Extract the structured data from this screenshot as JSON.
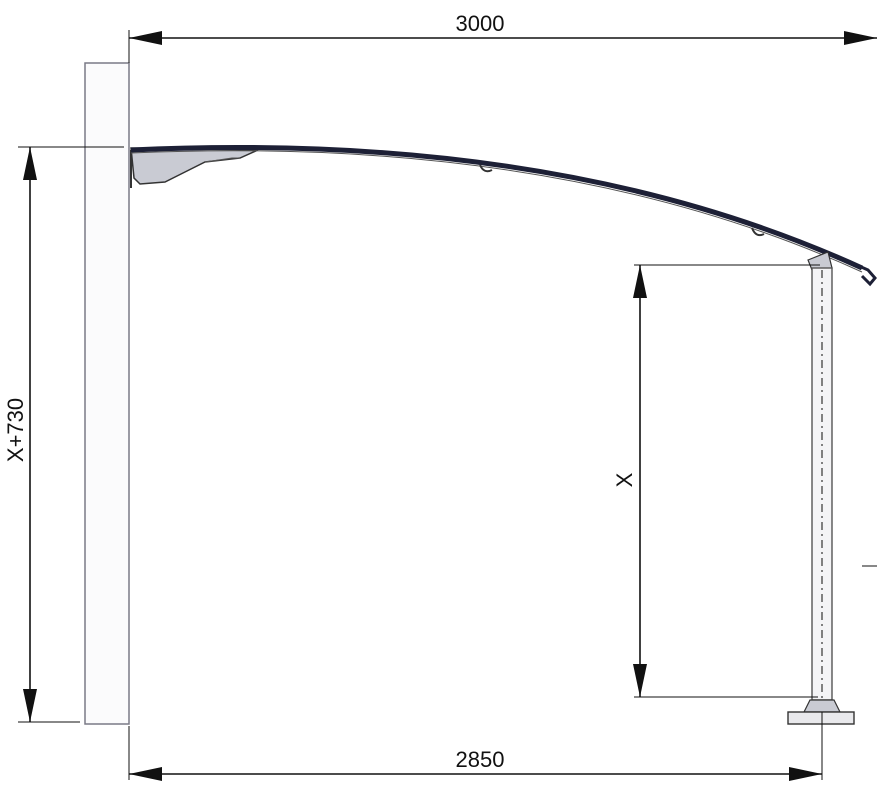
{
  "dimensions": {
    "top_width": "3000",
    "bottom_width": "2850",
    "left_height": "X+730",
    "post_height": "X"
  }
}
